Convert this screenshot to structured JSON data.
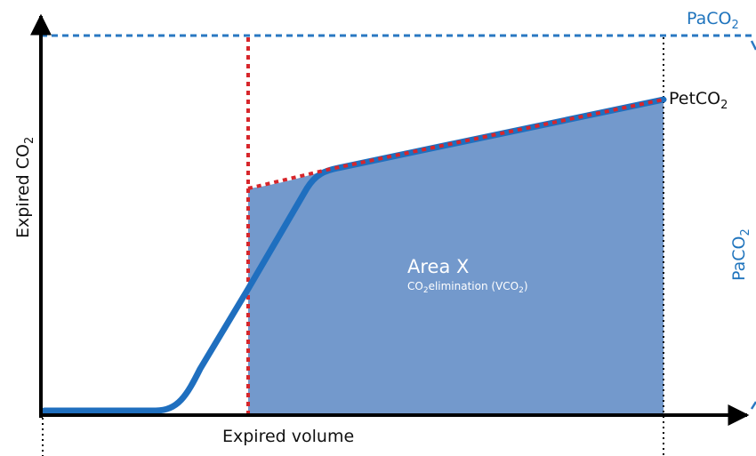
{
  "x_axis": {
    "label": "Expired volume"
  },
  "y_axis": {
    "label": "Expired CO",
    "label_sub": "2"
  },
  "paco2_top": {
    "label": "PaCO",
    "sub": "2"
  },
  "paco2_side": {
    "label": "PaCO",
    "sub": "2"
  },
  "petco2": {
    "label": "PetCO",
    "sub": "2"
  },
  "area": {
    "title": "Area X",
    "desc_prefix": "CO",
    "desc_sub": "2",
    "desc_mid": "elimination (VCO",
    "desc_sub2": "2",
    "desc_suffix": ")"
  },
  "colors": {
    "curve": "#1f6fbf",
    "area_fill": "#7399cc",
    "dotted_red": "#d7262b",
    "dashed_blue": "#2a78c2",
    "axis": "#000000"
  }
}
